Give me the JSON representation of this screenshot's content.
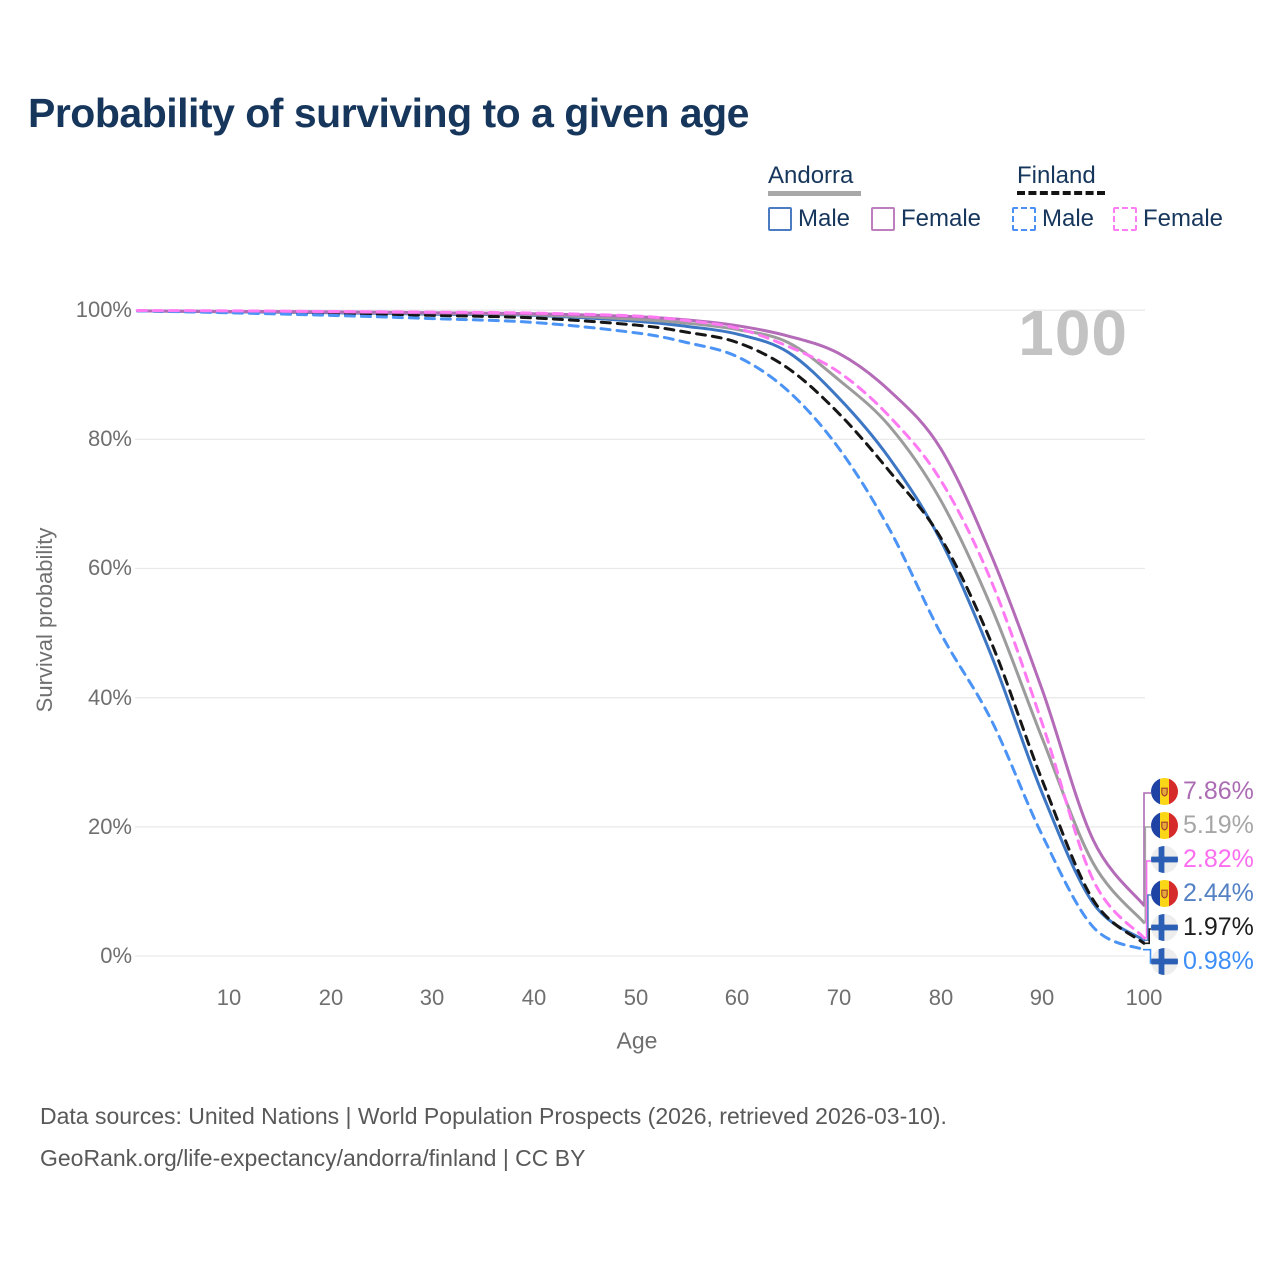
{
  "title": "Probability of surviving to a given age",
  "watermark": "100",
  "legend": {
    "groups": [
      {
        "name": "Andorra",
        "line_style": "solid",
        "line_color": "#a8a8a8",
        "items": [
          {
            "label": "Male",
            "color": "#4b7cc2"
          },
          {
            "label": "Female",
            "color": "#bd7ebd"
          }
        ]
      },
      {
        "name": "Finland",
        "line_style": "dashed",
        "line_color": "#141414",
        "items": [
          {
            "label": "Male",
            "color": "#4a90f5"
          },
          {
            "label": "Female",
            "color": "#ff7df2"
          }
        ]
      }
    ]
  },
  "chart_data": {
    "type": "line",
    "title": "Probability of surviving to a given age",
    "xlabel": "Age",
    "ylabel": "Survival probability",
    "xlim": [
      0,
      100
    ],
    "ylim": [
      0,
      100
    ],
    "grid": true,
    "legend_position": "top-right",
    "x_ticks": [
      "10",
      "20",
      "30",
      "40",
      "50",
      "60",
      "70",
      "80",
      "90",
      "100"
    ],
    "y_ticks": [
      "100%",
      "80%",
      "60%",
      "40%",
      "20%",
      "0%"
    ],
    "ages": [
      1,
      10,
      20,
      30,
      40,
      50,
      55,
      60,
      65,
      70,
      75,
      80,
      85,
      90,
      95,
      100
    ],
    "series": [
      {
        "name": "Andorra Female",
        "country": "Andorra",
        "sex": "Female",
        "style": "solid",
        "color": "#b46bb8",
        "label_color": "#ab6cb3",
        "end_label": "7.86%",
        "end_value": 7.86,
        "values": [
          99.9,
          99.8,
          99.75,
          99.6,
          99.45,
          99.0,
          98.5,
          97.6,
          96.0,
          93.3,
          87.5,
          78.6,
          62.0,
          41.2,
          18.0,
          7.86
        ]
      },
      {
        "name": "Andorra Both sexes",
        "country": "Andorra",
        "sex": "All",
        "style": "solid",
        "color": "#9c9c9c",
        "label_color": "#a6a6a6",
        "end_label": "5.19%",
        "end_value": 5.19,
        "values": [
          99.9,
          99.8,
          99.7,
          99.5,
          99.3,
          98.6,
          98.0,
          97.0,
          95.0,
          89.2,
          82.0,
          70.6,
          54.0,
          33.7,
          14.4,
          5.19
        ]
      },
      {
        "name": "Finland Female",
        "country": "Finland",
        "sex": "Female",
        "style": "dashed",
        "color": "#ff79f2",
        "label_color": "#fb6ef0",
        "end_label": "2.82%",
        "end_value": 2.82,
        "values": [
          99.95,
          99.9,
          99.8,
          99.7,
          99.55,
          99.1,
          98.4,
          97.2,
          94.4,
          90.4,
          83.5,
          73.7,
          58.0,
          36.0,
          11.8,
          2.82
        ]
      },
      {
        "name": "Andorra Male",
        "country": "Andorra",
        "sex": "Male",
        "style": "solid",
        "color": "#3d77c4",
        "label_color": "#5480c4",
        "end_label": "2.44%",
        "end_value": 2.44,
        "values": [
          99.9,
          99.75,
          99.6,
          99.4,
          99.2,
          98.3,
          97.5,
          96.3,
          93.5,
          86.4,
          77.0,
          64.4,
          46.5,
          25.2,
          8.2,
          2.44
        ]
      },
      {
        "name": "Finland Both sexes",
        "country": "Finland",
        "sex": "All",
        "style": "dashed",
        "color": "#161616",
        "label_color": "#1d1d1d",
        "end_label": "1.97%",
        "end_value": 1.97,
        "values": [
          99.9,
          99.7,
          99.5,
          99.2,
          98.8,
          97.7,
          96.6,
          95.0,
          91.0,
          84.0,
          75.0,
          64.8,
          48.5,
          27.2,
          8.7,
          1.97
        ]
      },
      {
        "name": "Finland Male",
        "country": "Finland",
        "sex": "Male",
        "style": "dashed",
        "color": "#4b93f5",
        "label_color": "#3e8ef7",
        "end_label": "0.98%",
        "end_value": 0.98,
        "values": [
          99.9,
          99.6,
          99.2,
          98.7,
          98.1,
          96.5,
          95.0,
          92.8,
          87.5,
          78.6,
          66.0,
          50.0,
          36.5,
          18.7,
          4.5,
          0.98
        ]
      }
    ]
  },
  "footer": {
    "line1": "Data sources: United Nations | World Population Prospects (2026, retrieved 2026-03-10).",
    "line2": "GeoRank.org/life-expectancy/andorra/finland | CC BY"
  }
}
